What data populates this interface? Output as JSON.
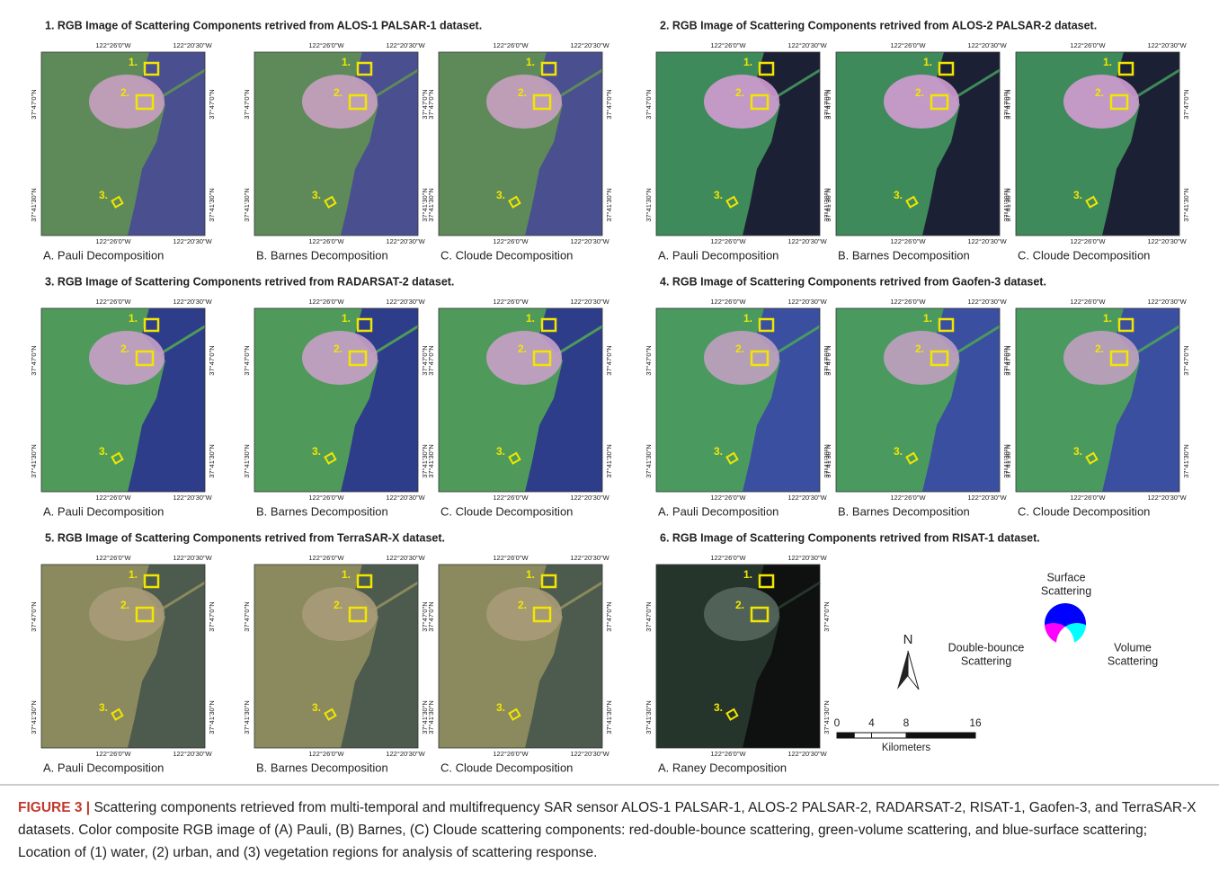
{
  "panels": [
    {
      "title": "1. RGB Image of Scattering Components retrived  from ALOS-1 PALSAR-1 dataset.",
      "images": [
        "A. Pauli Decomposition",
        "B. Barnes Decomposition",
        "C. Cloude Decomposition"
      ]
    },
    {
      "title": "2. RGB Image of Scattering Components retrived from ALOS-2 PALSAR-2 dataset.",
      "images": [
        "A. Pauli Decomposition",
        "B. Barnes Decomposition",
        "C. Cloude Decomposition"
      ]
    },
    {
      "title": "3. RGB Image of Scattering Components retrived from RADARSAT-2 dataset.",
      "images": [
        "A. Pauli Decomposition",
        "B. Barnes Decomposition",
        "C. Cloude Decomposition"
      ]
    },
    {
      "title": "4. RGB Image of Scattering Components retrived from Gaofen-3 dataset.",
      "images": [
        "A. Pauli Decomposition",
        "B. Barnes Decomposition",
        "C. Cloude Decomposition"
      ]
    },
    {
      "title": "5. RGB Image of Scattering Components retrived from TerraSAR-X dataset.",
      "images": [
        "A. Pauli Decomposition",
        "B. Barnes Decomposition",
        "C. Cloude Decomposition"
      ]
    },
    {
      "title": "6. RGB Image of Scattering Components retrived from RISAT-1 dataset.",
      "images": [
        "A. Raney Decomposition"
      ]
    }
  ],
  "coordinates": {
    "lon_left": "122°26'0\"W",
    "lon_right": "122°20'30\"W",
    "lat_top": "37°47'0\"N",
    "lat_bottom": "37°41'30\"N"
  },
  "regions": [
    "1.",
    "2.",
    "3."
  ],
  "legend": {
    "surface": [
      "Surface",
      "Scattering"
    ],
    "double_bounce": [
      "Double-bounce",
      "Scattering"
    ],
    "volume": [
      "Volume",
      "Scattering"
    ],
    "north": "N",
    "scale_ticks": [
      0,
      4,
      8,
      16
    ],
    "scale_unit": "Kilometers"
  },
  "caption": {
    "label": "FIGURE 3 |",
    "text": "Scattering components retrieved from multi-temporal and multifrequency SAR sensor ALOS-1 PALSAR-1, ALOS-2 PALSAR-2, RADARSAT-2, RISAT-1, Gaofen-3, and TerraSAR-X datasets. Color composite RGB image of (A) Pauli, (B) Barnes, (C) Cloude scattering components: red-double-bounce scattering, green-volume scattering, and blue-surface scattering; Location of (1) water, (2) urban, and (3) vegetation regions for analysis of scattering response."
  }
}
